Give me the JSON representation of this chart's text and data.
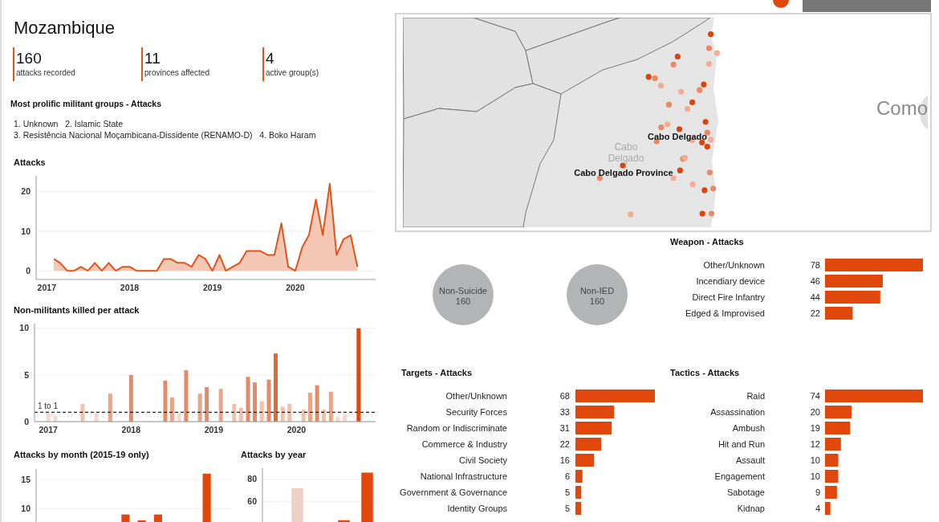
{
  "chart_data": [
    {
      "type": "other",
      "title": "Mozambique",
      "categories": [
        "attacks recorded",
        "provinces affected",
        "active group(s)"
      ],
      "values": [
        160,
        11,
        4
      ],
      "color": "#e0531c",
      "data_labels": true,
      "subtitle": "Most prolific militant groups - Attacks",
      "annotations": [
        "1. Unknown   2. Islamic State",
        "3. Resistência Nacional Moçambicana-Dissidente (RENAMO-D)   4. Boko Haram"
      ]
    },
    {
      "type": "other",
      "annotations": [
        "Cabo Delgado",
        "Cabo Delgado Province",
        "Cabo Delgado",
        "Como"
      ]
    },
    {
      "type": "area",
      "title": "Attacks",
      "x": [
        "2017-02",
        "2017-03",
        "2017-04",
        "2017-05",
        "2017-06",
        "2017-07",
        "2017-08",
        "2017-09",
        "2017-10",
        "2017-11",
        "2017-12",
        "2018-01",
        "2018-02",
        "2018-03",
        "2018-04",
        "2018-05",
        "2018-06",
        "2018-07",
        "2018-08",
        "2018-09",
        "2018-10",
        "2018-11",
        "2018-12",
        "2019-01",
        "2019-02",
        "2019-03",
        "2019-04",
        "2019-05",
        "2019-06",
        "2019-07",
        "2019-08",
        "2019-09",
        "2019-10",
        "2019-11",
        "2019-12",
        "2020-01",
        "2020-02",
        "2020-03",
        "2020-04",
        "2020-05",
        "2020-06",
        "2020-07",
        "2020-08",
        "2020-09",
        "2020-10"
      ],
      "values": [
        3,
        2,
        0,
        0,
        1,
        0,
        2,
        0,
        2,
        0,
        1,
        1,
        0,
        0,
        0,
        0,
        3,
        3,
        2,
        2,
        1,
        4,
        3,
        0,
        4,
        0,
        1,
        2,
        5,
        5,
        5,
        4,
        4,
        12,
        1,
        0,
        6,
        9,
        18,
        9,
        22,
        4,
        8,
        9,
        1
      ],
      "color": "#e0531c",
      "xlim": [
        "2016-11-15",
        "2020-12-20"
      ],
      "ylim": [
        -2.2,
        24
      ],
      "xticks": [
        {
          "value": "2017-01",
          "label": "2017"
        },
        {
          "value": "2018-01",
          "label": "2018"
        },
        {
          "value": "2019-01",
          "label": "2019"
        },
        {
          "value": "2020-01",
          "label": "2020"
        }
      ],
      "yticks": [
        0,
        10,
        20
      ],
      "grid": "y"
    },
    {
      "type": "bar",
      "title": "Non-militants killed per attack",
      "x": [
        "2017-01",
        "2017-02",
        "2017-06",
        "2017-08",
        "2017-10",
        "2018-01",
        "2018-06",
        "2018-07",
        "2018-08",
        "2018-09",
        "2018-11",
        "2018-12",
        "2019-02",
        "2019-04",
        "2019-05",
        "2019-06",
        "2019-07",
        "2019-08",
        "2019-09",
        "2019-10",
        "2019-11",
        "2019-12",
        "2020-02",
        "2020-03",
        "2020-04",
        "2020-05",
        "2020-06",
        "2020-07",
        "2020-08",
        "2020-10"
      ],
      "values": [
        0.9,
        0.6,
        1.9,
        0.9,
        3,
        5,
        4.4,
        2.6,
        0.9,
        5.5,
        3,
        3.7,
        3.5,
        1.9,
        1.5,
        4.8,
        4.2,
        2.2,
        4.5,
        7.3,
        1.6,
        1.9,
        1.3,
        3.1,
        3.9,
        1.3,
        3.2,
        0.5,
        0.8,
        10
      ],
      "colors": [
        "#f3d9cf",
        "#f3d9cf",
        "#efc2ae",
        "#f3d9cf",
        "#e9a587",
        "#e58a64",
        "#e58a64",
        "#e9a587",
        "#f3d9cf",
        "#e58a64",
        "#e9a587",
        "#e58a64",
        "#e9a587",
        "#efc2ae",
        "#efc2ae",
        "#e58a64",
        "#e58a64",
        "#efc2ae",
        "#e58a64",
        "#e06a36",
        "#efc2ae",
        "#efc2ae",
        "#efc2ae",
        "#e9a587",
        "#e58a64",
        "#efc2ae",
        "#e9a587",
        "#f3d9cf",
        "#f3d9cf",
        "#e0470a"
      ],
      "xlim": [
        "2016-11-01",
        "2020-12-15"
      ],
      "ylim": [
        0,
        10.5
      ],
      "xticks": [
        {
          "value": "2017-01",
          "label": "2017"
        },
        {
          "value": "2018-01",
          "label": "2018"
        },
        {
          "value": "2019-01",
          "label": "2019"
        },
        {
          "value": "2020-01",
          "label": "2020"
        }
      ],
      "yticks": [
        0,
        5,
        10
      ],
      "grid": "y",
      "ref_lines": [
        {
          "axis": "y",
          "value": 1,
          "label": "1 to 1",
          "line_style": "dashed",
          "color": "#222222"
        }
      ]
    },
    {
      "type": "bar",
      "title": "Attacks by month (2015-19 only)",
      "categories": [
        null,
        null,
        null,
        null,
        null,
        null,
        null,
        null,
        null,
        null,
        null,
        null
      ],
      "values": [
        null,
        null,
        null,
        null,
        null,
        9,
        8,
        9,
        null,
        null,
        16,
        null
      ],
      "color": "#e0470a",
      "ylim": [
        0,
        16.8
      ],
      "yticks": [
        10,
        15
      ],
      "grid": "y",
      "tick_labels": "y"
    },
    {
      "type": "bar",
      "title": "Attacks by year",
      "categories": [
        null,
        null,
        null,
        null,
        null
      ],
      "values": [
        null,
        72,
        null,
        43,
        86
      ],
      "colors": [
        "#e0470a",
        "#f0d0c4",
        "#e0470a",
        "#e0470a",
        "#e0470a"
      ],
      "ylim": [
        0,
        90
      ],
      "yticks": [
        60,
        80
      ],
      "grid": "y",
      "tick_labels": "y"
    },
    {
      "type": "other",
      "categories": [
        "Non-Suicide",
        "Non-IED"
      ],
      "values": [
        160,
        160
      ],
      "color": "#b2b4b5",
      "data_labels": true
    },
    {
      "type": "bar",
      "orientation": "horizontal",
      "title": "Weapon - Attacks",
      "categories": [
        "Other/Unknown",
        "Incendiary device",
        "Direct Fire Infantry",
        "Edged & Improvised"
      ],
      "values": [
        78,
        46,
        44,
        22
      ],
      "color": "#e0470a",
      "data_labels": true
    },
    {
      "type": "bar",
      "orientation": "horizontal",
      "title": "Targets - Attacks",
      "categories": [
        "Other/Unknown",
        "Security Forces",
        "Random or Indiscriminate",
        "Commerce & Industry",
        "Civil Society",
        "National Infrastructure",
        "Government & Governance",
        "Identity Groups"
      ],
      "values": [
        68,
        33,
        31,
        22,
        16,
        6,
        5,
        5
      ],
      "color": "#e0470a",
      "data_labels": true
    },
    {
      "type": "bar",
      "orientation": "horizontal",
      "title": "Tactics - Attacks",
      "categories": [
        "Raid",
        "Assassination",
        "Ambush",
        "Hit and Run",
        "Assault",
        "Engagement",
        "Sabotage",
        "Kidnap"
      ],
      "values": [
        74,
        20,
        19,
        12,
        10,
        10,
        9,
        4
      ],
      "color": "#e0470a",
      "data_labels": true
    }
  ]
}
